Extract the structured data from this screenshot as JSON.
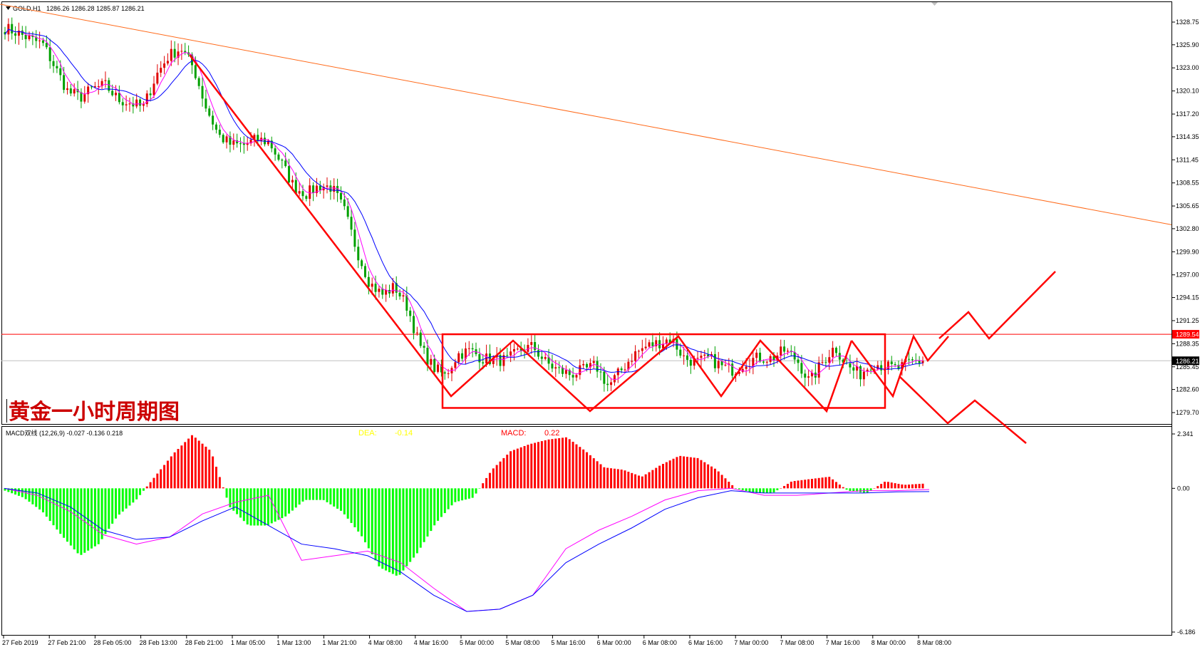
{
  "header": {
    "symbol": "GOLD,H1",
    "quote": "1286.26 1286.28 1285.87 1286.21"
  },
  "overlay_label": "黄金一小时周期图",
  "macd": {
    "title": "MACD双线 (12,26,9) -0.027 -0.136 0.218",
    "dea_label": "DEA:",
    "dea_value": "-0.14",
    "macd_label": "MACD:",
    "macd_value": "0.22"
  },
  "price_axis": {
    "ticks": [
      "1328.75",
      "1325.90",
      "1323.00",
      "1320.10",
      "1317.20",
      "1314.35",
      "1311.45",
      "1308.55",
      "1305.65",
      "1302.80",
      "1299.90",
      "1297.00",
      "1294.15",
      "1291.25",
      "1288.35",
      "1285.45",
      "1282.60",
      "1279.70"
    ],
    "resistance_tag": "1289.54",
    "current_tag": "1286.21"
  },
  "macd_axis": {
    "ticks": [
      "2.341",
      "0.00",
      "-6.186"
    ]
  },
  "time_axis": {
    "labels": [
      "27 Feb 2019",
      "27 Feb 21:00",
      "28 Feb 05:00",
      "28 Feb 13:00",
      "28 Feb 21:00",
      "1 Mar 05:00",
      "1 Mar 13:00",
      "1 Mar 21:00",
      "4 Mar 08:00",
      "4 Mar 16:00",
      "5 Mar 00:00",
      "5 Mar 08:00",
      "5 Mar 16:00",
      "6 Mar 00:00",
      "6 Mar 08:00",
      "6 Mar 16:00",
      "7 Mar 00:00",
      "7 Mar 08:00",
      "7 Mar 16:00",
      "8 Mar 00:00",
      "8 Mar 08:00"
    ]
  },
  "colors": {
    "bull": "#e00000",
    "bear": "#00a000",
    "ma_fast": "#ff00ff",
    "ma_slow": "#0000ff",
    "trend": "#ff6a1a",
    "annotation": "#ff0000",
    "hist_up": "#ff0000",
    "hist_down": "#00ff00",
    "dea_text": "#ffff00",
    "macd_text": "#ff0000"
  },
  "chart_data": {
    "type": "candlestick",
    "symbol": "GOLD",
    "timeframe": "H1",
    "ylim": [
      1278.5,
      1331.0
    ],
    "resistance": 1289.54,
    "current": 1286.21,
    "range_box": [
      1281.0,
      1289.54
    ],
    "trendline": [
      [
        0,
        1331.0
      ],
      [
        266,
        1303.3
      ]
    ],
    "price_path": [
      1328.0,
      1327.4,
      1326.6,
      1326.0,
      1323.0,
      1320.0,
      1319.3,
      1320.4,
      1320.8,
      1319.0,
      1318.6,
      1318.0,
      1322.0,
      1324.5,
      1325.5,
      1323.0,
      1318.0,
      1314.5,
      1313.3,
      1313.3,
      1314.0,
      1313.7,
      1311.0,
      1308.0,
      1307.2,
      1308.2,
      1308.0,
      1305.0,
      1300.0,
      1296.0,
      1294.5,
      1295.5,
      1293.0,
      1288.0,
      1285.5,
      1284.3,
      1287.0,
      1287.5,
      1286.5,
      1286.3,
      1286.3,
      1287.6,
      1288.0,
      1286.0,
      1285.0,
      1284.5,
      1285.0,
      1285.6,
      1283.0,
      1285.0,
      1287.0,
      1288.0,
      1288.5,
      1289.0,
      1286.6,
      1286.0,
      1286.5,
      1285.5,
      1285.0,
      1286.2,
      1286.6,
      1286.5,
      1287.5,
      1286.3,
      1283.5,
      1286.0,
      1288.0,
      1285.5,
      1284.5,
      1286.0,
      1285.5,
      1285.2,
      1286.0,
      1286.21
    ],
    "macd_histogram": [
      -0.1,
      -0.4,
      -1.0,
      -2.0,
      -2.9,
      -2.4,
      -1.2,
      -0.5,
      0.5,
      1.5,
      2.3,
      1.6,
      -0.8,
      -1.6,
      -1.6,
      -1.2,
      -0.5,
      -0.5,
      -1.0,
      -2.0,
      -3.4,
      -3.8,
      -2.8,
      -1.5,
      -0.6,
      -0.4,
      0.8,
      1.6,
      1.9,
      2.1,
      2.2,
      1.6,
      0.9,
      0.8,
      0.5,
      1.0,
      1.4,
      1.3,
      0.8,
      0.0,
      -0.2,
      -0.2,
      0.3,
      0.4,
      0.5,
      -0.1,
      -0.2,
      0.3,
      0.15,
      0.2
    ],
    "macd_line": [
      0.0,
      -0.3,
      -1.0,
      -2.0,
      -2.4,
      -2.1,
      -1.1,
      -0.6,
      -0.3,
      -3.1,
      -2.9,
      -2.7,
      -3.2,
      -4.3,
      -5.3,
      -5.2,
      -4.6,
      -2.6,
      -1.8,
      -1.2,
      -0.5,
      -0.1,
      0.0,
      -0.3,
      -0.3,
      -0.2,
      -0.1,
      -0.1,
      -0.05
    ],
    "signal_line": [
      0.0,
      -0.2,
      -0.8,
      -1.8,
      -2.2,
      -2.1,
      -1.4,
      -0.8,
      -1.6,
      -2.4,
      -2.6,
      -2.9,
      -3.6,
      -4.6,
      -5.3,
      -5.2,
      -4.6,
      -3.2,
      -2.4,
      -1.7,
      -0.9,
      -0.4,
      -0.1,
      -0.2,
      -0.2,
      -0.2,
      -0.2,
      -0.15,
      -0.14
    ]
  }
}
